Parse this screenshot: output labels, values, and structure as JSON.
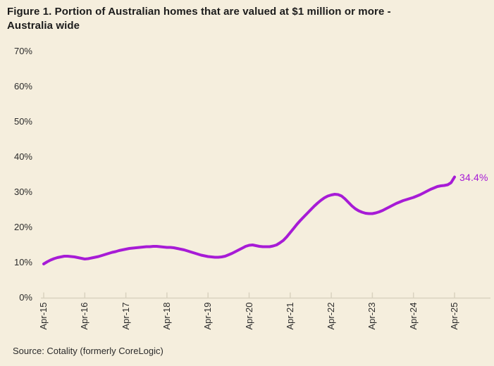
{
  "figure": {
    "title_line1": "Figure 1. Portion of Australian homes that are valued at $1 million or more -",
    "title_line2": "Australia wide",
    "end_label": "34.4%",
    "source": "Source: Cotality (formerly CoreLogic)"
  },
  "colors": {
    "background": "#f5eedd",
    "line": "#a71bd6",
    "axis": "#d9d2bf",
    "title_text": "#1c1c1c",
    "label_text": "#2b2b2b"
  },
  "chart_data": {
    "type": "line",
    "title": "Figure 1. Portion of Australian homes that are valued at $1 million or more - Australia wide",
    "xlabel": "",
    "ylabel": "",
    "unit": "%",
    "ylim": [
      0,
      70
    ],
    "y_ticks": [
      "0%",
      "10%",
      "20%",
      "30%",
      "40%",
      "50%",
      "60%",
      "70%"
    ],
    "x_tick_labels": [
      "Apr-15",
      "Apr-16",
      "Apr-17",
      "Apr-18",
      "Apr-19",
      "Apr-20",
      "Apr-21",
      "Apr-22",
      "Apr-23",
      "Apr-24",
      "Apr-25"
    ],
    "x_interval": "monthly",
    "x_start": "Apr-2015",
    "x_end": "Apr-2025",
    "grid": "off",
    "legend": "none",
    "end_annotation": "34.4%",
    "series": [
      {
        "name": "Portion of homes valued at $1 million or more - Australia wide",
        "values": [
          9.7,
          10.3,
          10.8,
          11.2,
          11.5,
          11.7,
          11.9,
          11.9,
          11.8,
          11.7,
          11.5,
          11.3,
          11.1,
          11.2,
          11.4,
          11.6,
          11.8,
          12.1,
          12.4,
          12.7,
          13.0,
          13.2,
          13.5,
          13.7,
          13.9,
          14.1,
          14.2,
          14.3,
          14.4,
          14.5,
          14.6,
          14.6,
          14.7,
          14.7,
          14.6,
          14.5,
          14.4,
          14.4,
          14.3,
          14.1,
          13.9,
          13.7,
          13.4,
          13.1,
          12.8,
          12.5,
          12.2,
          12.0,
          11.8,
          11.7,
          11.6,
          11.6,
          11.7,
          11.9,
          12.3,
          12.7,
          13.2,
          13.7,
          14.2,
          14.7,
          15.0,
          15.1,
          14.9,
          14.7,
          14.6,
          14.6,
          14.6,
          14.8,
          15.1,
          15.7,
          16.4,
          17.4,
          18.6,
          19.8,
          21.0,
          22.1,
          23.1,
          24.1,
          25.1,
          26.1,
          27.0,
          27.8,
          28.5,
          29.0,
          29.3,
          29.5,
          29.4,
          29.0,
          28.2,
          27.2,
          26.2,
          25.4,
          24.8,
          24.4,
          24.1,
          24.0,
          24.0,
          24.2,
          24.5,
          24.9,
          25.4,
          25.9,
          26.4,
          26.9,
          27.3,
          27.7,
          28.0,
          28.3,
          28.6,
          29.0,
          29.4,
          29.9,
          30.4,
          30.9,
          31.3,
          31.7,
          31.9,
          32.0,
          32.2,
          32.8,
          34.4
        ]
      }
    ]
  }
}
